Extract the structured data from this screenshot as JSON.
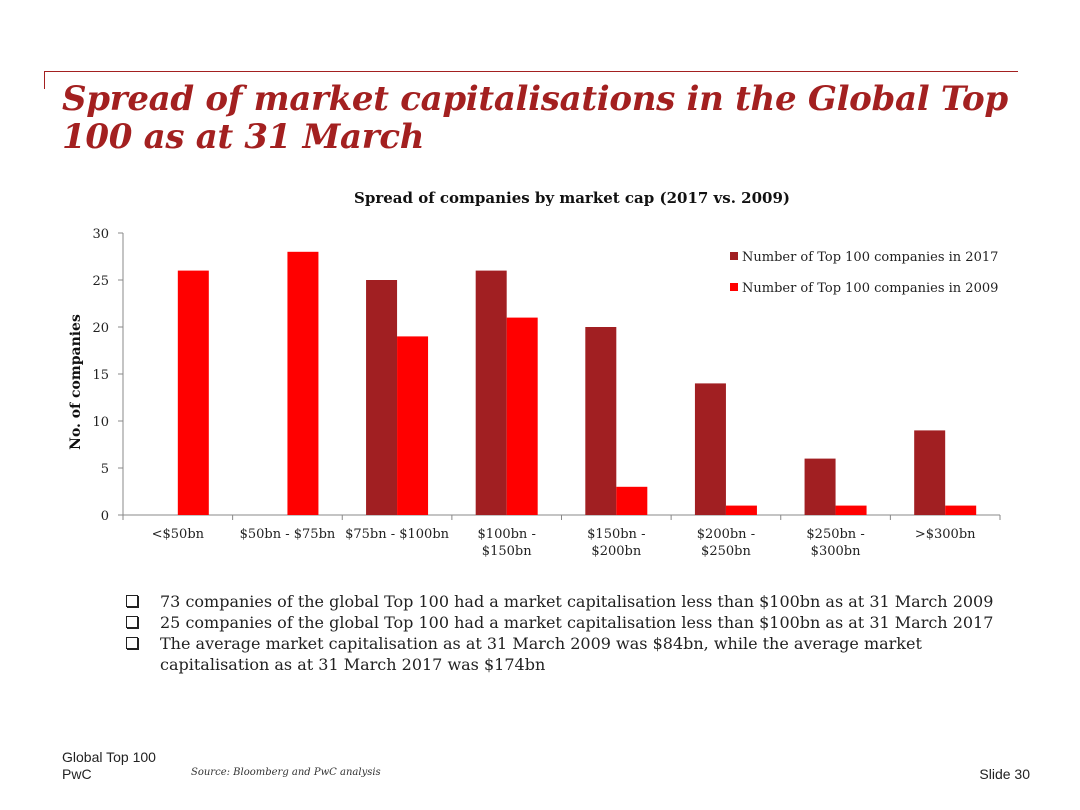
{
  "slide": {
    "title": "Spread of market capitalisations in the Global Top 100 as at 31 March",
    "footer_line1": "Global Top 100",
    "footer_line2": "PwC",
    "source": "Source: Bloomberg and PwC analysis",
    "slide_number": "Slide 30"
  },
  "bullets": [
    "73 companies of the global Top 100 had a market capitalisation less than $100bn as at 31 March 2009",
    "25 companies of the global Top 100 had a market capitalisation less than $100bn as at 31 March 2017",
    "The average market capitalisation as at 31 March 2009 was $84bn, while the average market capitalisation as at 31 March 2017 was $174bn"
  ],
  "colors": {
    "accent": "#a32020",
    "series_2017": "#a11f22",
    "series_2009": "#ff0000"
  },
  "chart_data": {
    "type": "bar",
    "title": "Spread of companies by market cap (2017 vs. 2009)",
    "xlabel": "",
    "ylabel": "No. of companies",
    "ylim": [
      0,
      30
    ],
    "yticks": [
      0,
      5,
      10,
      15,
      20,
      25,
      30
    ],
    "grid": false,
    "legend_position": "top-right",
    "categories": [
      [
        "<$50bn"
      ],
      [
        "$50bn - $75bn"
      ],
      [
        "$75bn - $100bn"
      ],
      [
        "$100bn -",
        "$150bn"
      ],
      [
        "$150bn -",
        "$200bn"
      ],
      [
        "$200bn -",
        "$250bn"
      ],
      [
        "$250bn -",
        "$300bn"
      ],
      [
        ">$300bn"
      ]
    ],
    "series": [
      {
        "name": "Number of Top 100 companies in 2017",
        "color": "#a11f22",
        "values": [
          0,
          0,
          25,
          26,
          20,
          14,
          6,
          9
        ]
      },
      {
        "name": "Number of Top 100 companies in 2009",
        "color": "#ff0000",
        "values": [
          26,
          28,
          19,
          21,
          3,
          1,
          1,
          1
        ]
      }
    ]
  }
}
